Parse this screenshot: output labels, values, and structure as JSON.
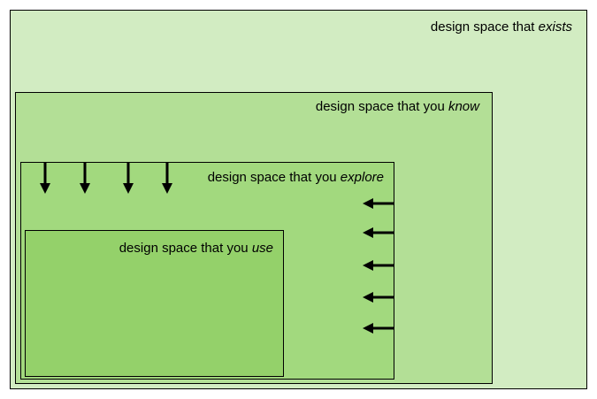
{
  "colors": {
    "exists": "#d2ecc2",
    "know": "#b3df96",
    "explore": "#a2d97e",
    "use": "#94d16a",
    "border": "#000000"
  },
  "regions": {
    "exists": {
      "prefix": "design space that ",
      "emphasis": "exists"
    },
    "know": {
      "prefix": "design space that you ",
      "emphasis": "know"
    },
    "explore": {
      "prefix": "design space that you ",
      "emphasis": "explore"
    },
    "use": {
      "prefix": "design space that you ",
      "emphasis": "use"
    }
  },
  "arrows": {
    "down_count": 4,
    "left_count": 5
  }
}
